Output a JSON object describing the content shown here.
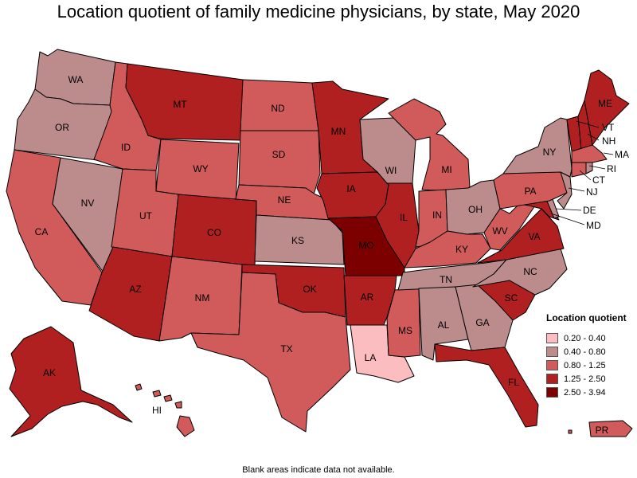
{
  "title": "Location quotient of family medicine physicians, by state, May 2020",
  "footnote": "Blank areas indicate data not available.",
  "colors": {
    "c1": "#fbbdbf",
    "c2": "#bc8c8c",
    "c3": "#d15a5a",
    "c4": "#b02020",
    "c5": "#7d0000"
  },
  "legend": {
    "title": "Location quotient",
    "items": [
      {
        "label": "0.20 - 0.40",
        "color": "#fbbdbf"
      },
      {
        "label": "0.40 - 0.80",
        "color": "#bc8c8c"
      },
      {
        "label": "0.80 - 1.25",
        "color": "#d15a5a"
      },
      {
        "label": "1.25 - 2.50",
        "color": "#b02020"
      },
      {
        "label": "2.50 - 3.94",
        "color": "#7d0000"
      }
    ]
  },
  "states": {
    "WA": {
      "label": "WA",
      "range": "0.40 - 0.80"
    },
    "OR": {
      "label": "OR",
      "range": "0.40 - 0.80"
    },
    "CA": {
      "label": "CA",
      "range": "0.80 - 1.25"
    },
    "NV": {
      "label": "NV",
      "range": "0.40 - 0.80"
    },
    "ID": {
      "label": "ID",
      "range": "0.80 - 1.25"
    },
    "MT": {
      "label": "MT",
      "range": "1.25 - 2.50"
    },
    "WY": {
      "label": "WY",
      "range": "0.80 - 1.25"
    },
    "UT": {
      "label": "UT",
      "range": "0.80 - 1.25"
    },
    "AZ": {
      "label": "AZ",
      "range": "1.25 - 2.50"
    },
    "CO": {
      "label": "CO",
      "range": "1.25 - 2.50"
    },
    "NM": {
      "label": "NM",
      "range": "0.80 - 1.25"
    },
    "ND": {
      "label": "ND",
      "range": "0.80 - 1.25"
    },
    "SD": {
      "label": "SD",
      "range": "0.80 - 1.25"
    },
    "NE": {
      "label": "NE",
      "range": "0.80 - 1.25"
    },
    "KS": {
      "label": "KS",
      "range": "0.40 - 0.80"
    },
    "OK": {
      "label": "OK",
      "range": "1.25 - 2.50"
    },
    "TX": {
      "label": "TX",
      "range": "0.80 - 1.25"
    },
    "MN": {
      "label": "MN",
      "range": "1.25 - 2.50"
    },
    "IA": {
      "label": "IA",
      "range": "1.25 - 2.50"
    },
    "MO": {
      "label": "MO",
      "range": "2.50 - 3.94"
    },
    "AR": {
      "label": "AR",
      "range": "1.25 - 2.50"
    },
    "LA": {
      "label": "LA",
      "range": "0.20 - 0.40"
    },
    "WI": {
      "label": "WI",
      "range": "0.40 - 0.80"
    },
    "IL": {
      "label": "IL",
      "range": "1.25 - 2.50"
    },
    "MS": {
      "label": "MS",
      "range": "0.80 - 1.25"
    },
    "MI": {
      "label": "MI",
      "range": "0.80 - 1.25"
    },
    "IN": {
      "label": "IN",
      "range": "0.80 - 1.25"
    },
    "OH": {
      "label": "OH",
      "range": "0.40 - 0.80"
    },
    "KY": {
      "label": "KY",
      "range": "0.80 - 1.25"
    },
    "TN": {
      "label": "TN",
      "range": "0.40 - 0.80"
    },
    "AL": {
      "label": "AL",
      "range": "0.40 - 0.80"
    },
    "GA": {
      "label": "GA",
      "range": "0.40 - 0.80"
    },
    "FL": {
      "label": "FL",
      "range": "1.25 - 2.50"
    },
    "SC": {
      "label": "SC",
      "range": "1.25 - 2.50"
    },
    "NC": {
      "label": "NC",
      "range": "0.40 - 0.80"
    },
    "VA": {
      "label": "VA",
      "range": "1.25 - 2.50"
    },
    "WV": {
      "label": "WV",
      "range": "0.80 - 1.25"
    },
    "PA": {
      "label": "PA",
      "range": "0.80 - 1.25"
    },
    "NY": {
      "label": "NY",
      "range": "0.40 - 0.80"
    },
    "ME": {
      "label": "ME",
      "range": "1.25 - 2.50"
    },
    "VT": {
      "label": "VT",
      "range": "1.25 - 2.50"
    },
    "NH": {
      "label": "NH",
      "range": "1.25 - 2.50"
    },
    "MA": {
      "label": "MA",
      "range": "0.80 - 1.25"
    },
    "RI": {
      "label": "RI",
      "range": "0.40 - 0.80"
    },
    "CT": {
      "label": "CT",
      "range": "0.80 - 1.25"
    },
    "NJ": {
      "label": "NJ",
      "range": "0.40 - 0.80"
    },
    "DE": {
      "label": "DE",
      "range": "0.40 - 0.80"
    },
    "MD": {
      "label": "MD",
      "range": "1.25 - 2.50"
    },
    "AK": {
      "label": "AK",
      "range": "1.25 - 2.50"
    },
    "HI": {
      "label": "HI",
      "range": "0.80 - 1.25"
    },
    "PR": {
      "label": "PR",
      "range": "0.80 - 1.25"
    }
  }
}
